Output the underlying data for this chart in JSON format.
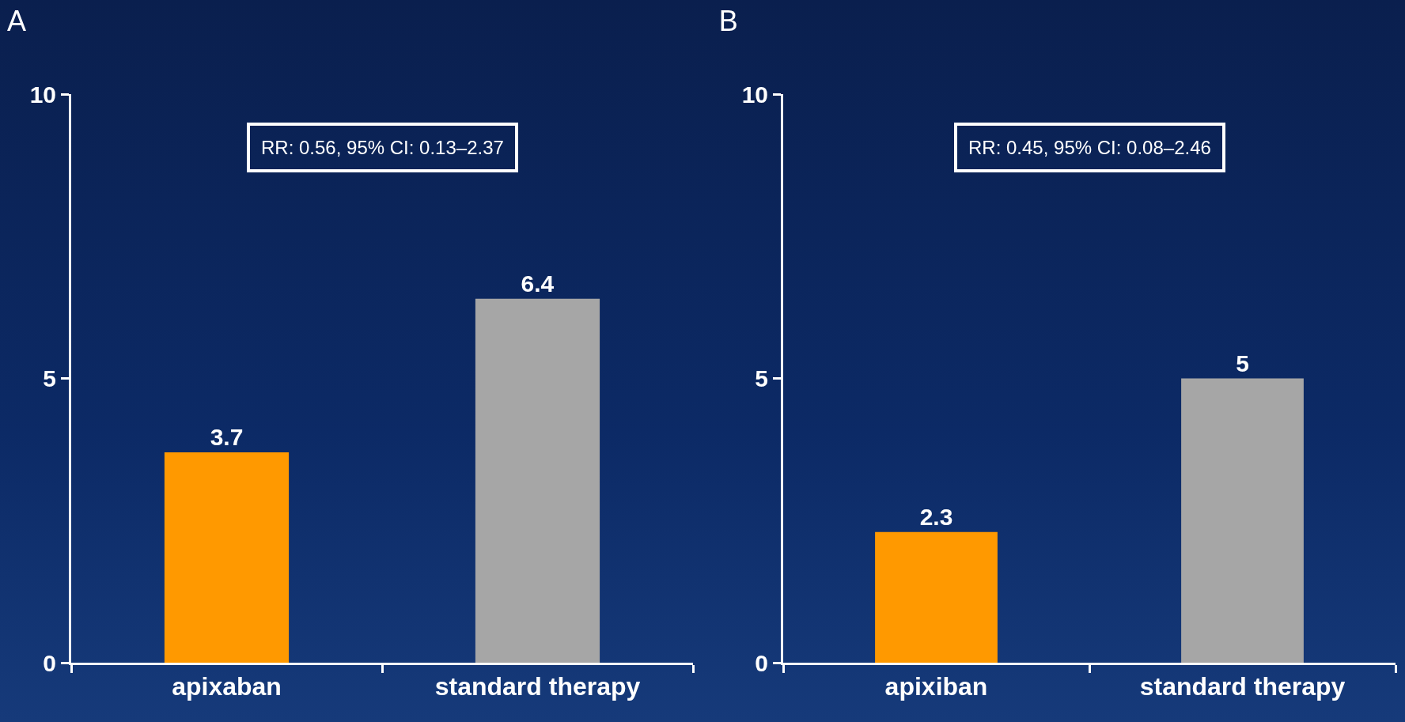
{
  "chart_data": [
    {
      "type": "bar",
      "title": "A",
      "categories": [
        "apixaban",
        "standard therapy"
      ],
      "values": [
        3.7,
        6.4
      ],
      "colors": [
        "#ff9900",
        "#a6a6a6"
      ],
      "ylim": [
        0,
        10
      ],
      "yticks": [
        0,
        5,
        10
      ],
      "grid": false,
      "legend": false,
      "data_labels": true,
      "annotations": [
        "RR: 0.56, 95% CI: 0.13–2.37"
      ]
    },
    {
      "type": "bar",
      "title": "B",
      "categories": [
        "apixiban",
        "standard therapy"
      ],
      "values": [
        2.3,
        5
      ],
      "colors": [
        "#ff9900",
        "#a6a6a6"
      ],
      "ylim": [
        0,
        10
      ],
      "yticks": [
        0,
        5,
        10
      ],
      "grid": false,
      "legend": false,
      "data_labels": true,
      "annotations": [
        "RR: 0.45, 95% CI: 0.08–2.46"
      ]
    }
  ]
}
